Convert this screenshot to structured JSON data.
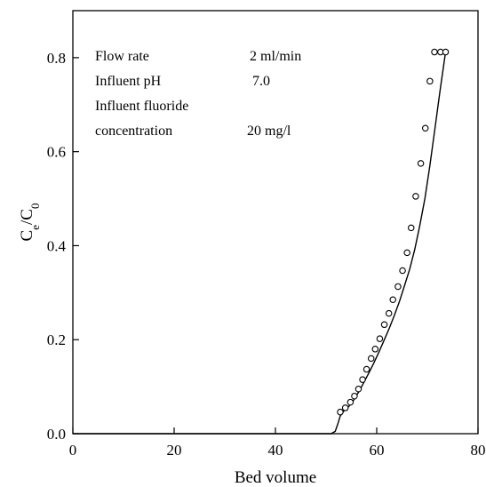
{
  "chart_data": {
    "type": "scatter",
    "xlabel": "Bed volume",
    "ylabel": {
      "base": "C",
      "sub1": "e",
      "sep": "/C",
      "sub2": "0"
    },
    "xlim": [
      0,
      80
    ],
    "ylim": [
      0,
      0.9
    ],
    "x_ticks": [
      0,
      20,
      40,
      60,
      80
    ],
    "x_tick_labels": [
      "0",
      "20",
      "40",
      "60",
      "80"
    ],
    "y_ticks": [
      0,
      0.2,
      0.4,
      0.6,
      0.8
    ],
    "y_tick_labels": [
      "0.0",
      "0.2",
      "0.4",
      "0.6",
      "0.8"
    ],
    "grid": false,
    "annotations": {
      "flow_rate_label": "Flow rate",
      "flow_rate_value": "2 ml/min",
      "ph_label": "Influent pH",
      "ph_value": "7.0",
      "fluoride_label_1": "Influent fluoride",
      "fluoride_label_2": "concentration",
      "fluoride_value": "20 mg/l"
    },
    "series": [
      {
        "kind": "points",
        "marker": "open-circle",
        "x": [
          52.8,
          53.8,
          54.8,
          55.6,
          56.4,
          57.2,
          58.0,
          58.9,
          59.7,
          60.6,
          61.5,
          62.4,
          63.2,
          64.2,
          65.1,
          66.0,
          66.8,
          67.7,
          68.7,
          69.6,
          70.5,
          71.4,
          72.6,
          73.6
        ],
        "y": [
          0.046,
          0.055,
          0.067,
          0.08,
          0.095,
          0.115,
          0.137,
          0.16,
          0.18,
          0.202,
          0.232,
          0.256,
          0.285,
          0.313,
          0.347,
          0.385,
          0.438,
          0.505,
          0.575,
          0.65,
          0.75,
          0.812,
          0.812,
          0.812
        ]
      },
      {
        "kind": "line",
        "x": [
          0,
          51.0,
          51.8,
          52.3,
          52.8,
          53.5,
          54.5,
          55.5,
          56.5,
          57.5,
          58.5,
          59.5,
          60.5,
          61.5,
          62.5,
          63.5,
          64.5,
          65.5,
          66.5,
          67.5,
          68.5,
          69.5,
          70.5,
          71.5,
          72.5,
          73.6
        ],
        "y": [
          0,
          0.0,
          0.005,
          0.02,
          0.038,
          0.048,
          0.058,
          0.072,
          0.09,
          0.11,
          0.13,
          0.152,
          0.175,
          0.2,
          0.225,
          0.252,
          0.282,
          0.315,
          0.35,
          0.392,
          0.442,
          0.5,
          0.57,
          0.65,
          0.73,
          0.812
        ]
      }
    ]
  }
}
